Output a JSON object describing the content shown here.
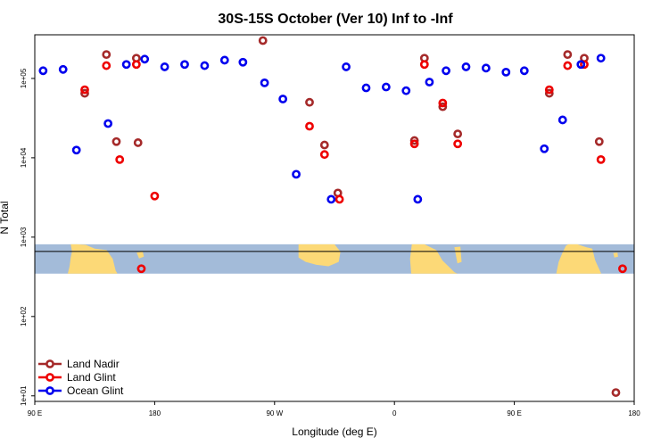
{
  "chart_data": {
    "type": "scatter",
    "title": "30S-15S October (Ver 10)   Inf to -Inf",
    "xlabel": "Longitude (deg E)",
    "ylabel": "N Total",
    "y_scale": "log",
    "xlim": [
      0,
      360
    ],
    "ylim_log10": [
      0.93,
      5.55
    ],
    "x_ticks": [
      {
        "value": 0,
        "label": "90 E"
      },
      {
        "value": 72,
        "label": "180"
      },
      {
        "value": 144,
        "label": "90 W"
      },
      {
        "value": 216,
        "label": "0"
      },
      {
        "value": 288,
        "label": "90 E"
      },
      {
        "value": 360,
        "label": "180"
      }
    ],
    "y_ticks": [
      {
        "log10": 1,
        "label": "1e+01"
      },
      {
        "log10": 2,
        "label": "1e+02"
      },
      {
        "log10": 3,
        "label": "1e+03"
      },
      {
        "log10": 4,
        "label": "1e+04"
      },
      {
        "log10": 5,
        "label": "1e+05"
      }
    ],
    "map_strip": {
      "log10_range": [
        2.54,
        2.91
      ],
      "center_line_log10": 2.82,
      "ocean_color": "#a3bbd9",
      "land_color": "#fcd977"
    },
    "series": [
      {
        "name": "Land Nadir",
        "color": "#a52a2a",
        "points": [
          [
            30,
            65000
          ],
          [
            43,
            200000
          ],
          [
            61,
            180000
          ],
          [
            49,
            16000
          ],
          [
            62,
            15500
          ],
          [
            137,
            300000
          ],
          [
            165,
            50000
          ],
          [
            174,
            14500
          ],
          [
            182,
            3600
          ],
          [
            228,
            16500
          ],
          [
            234,
            180000
          ],
          [
            245,
            44000
          ],
          [
            254,
            20000
          ],
          [
            309,
            65000
          ],
          [
            320,
            200000
          ],
          [
            330,
            180000
          ],
          [
            339,
            16000
          ],
          [
            349,
            11
          ]
        ]
      },
      {
        "name": "Land Glint",
        "color": "#ee0000",
        "points": [
          [
            30,
            72000
          ],
          [
            43,
            145000
          ],
          [
            61,
            150000
          ],
          [
            51,
            9500
          ],
          [
            72,
            3300
          ],
          [
            64,
            400
          ],
          [
            165,
            25000
          ],
          [
            174,
            11000
          ],
          [
            183,
            3000
          ],
          [
            228,
            15000
          ],
          [
            234,
            150000
          ],
          [
            245,
            49000
          ],
          [
            254,
            15000
          ],
          [
            309,
            72000
          ],
          [
            320,
            145000
          ],
          [
            330,
            150000
          ],
          [
            340,
            9500
          ],
          [
            353,
            400
          ]
        ]
      },
      {
        "name": "Ocean Glint",
        "color": "#0000ee",
        "points": [
          [
            5,
            125000
          ],
          [
            17,
            130000
          ],
          [
            25,
            12500
          ],
          [
            44,
            27000
          ],
          [
            55,
            150000
          ],
          [
            66,
            175000
          ],
          [
            78,
            140000
          ],
          [
            90,
            150000
          ],
          [
            102,
            145000
          ],
          [
            114,
            170000
          ],
          [
            125,
            160000
          ],
          [
            138,
            88000
          ],
          [
            149,
            55000
          ],
          [
            157,
            6200
          ],
          [
            178,
            3000
          ],
          [
            187,
            140000
          ],
          [
            199,
            76000
          ],
          [
            211,
            78000
          ],
          [
            223,
            70000
          ],
          [
            230,
            3000
          ],
          [
            237,
            90000
          ],
          [
            247,
            125000
          ],
          [
            259,
            140000
          ],
          [
            271,
            135000
          ],
          [
            283,
            120000
          ],
          [
            294,
            125000
          ],
          [
            306,
            13000
          ],
          [
            317,
            30000
          ],
          [
            328,
            150000
          ],
          [
            340,
            180000
          ]
        ]
      }
    ],
    "legend": {
      "position": "bottom-left",
      "entries": [
        "Land Nadir",
        "Land Glint",
        "Ocean Glint"
      ]
    }
  }
}
